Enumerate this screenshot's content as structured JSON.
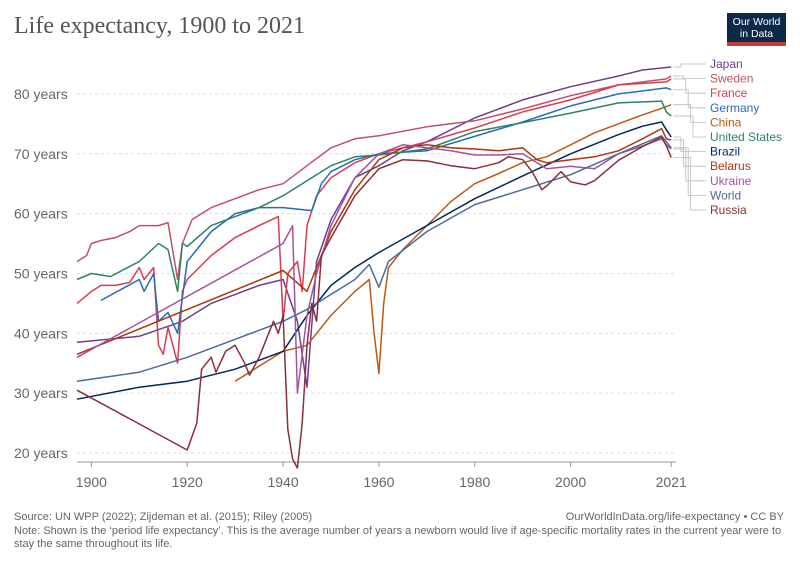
{
  "title": "Life expectancy, 1900 to 2021",
  "logo": {
    "line1": "Our World",
    "line2": "in Data"
  },
  "footer": {
    "source": "Source: UN WPP (2022); Zijdeman et al. (2015); Riley (2005)",
    "credit": "OurWorldInData.org/life-expectancy • CC BY",
    "note": "Note: Shown is the ‘period life expectancy’. This is the average number of years a newborn would live if age-specific mortality rates in the current year were to stay the same throughout its life."
  },
  "chart_data": {
    "type": "line",
    "title": "Life expectancy, 1900 to 2021",
    "xlim": [
      1897,
      2022
    ],
    "ylim": [
      18.5,
      86
    ],
    "x_ticks": [
      1900,
      1920,
      1940,
      1960,
      1980,
      2000,
      2021
    ],
    "x_tick_labels": [
      "1900",
      "1920",
      "1940",
      "1960",
      "1980",
      "2000",
      "2021"
    ],
    "y_ticks": [
      20,
      30,
      40,
      50,
      60,
      70,
      80
    ],
    "y_tick_labels": [
      "20 years",
      "30 years",
      "40 years",
      "50 years",
      "60 years",
      "70 years",
      "80 years"
    ],
    "grid": "horizontal dashed",
    "legend_position": "right",
    "series": [
      {
        "name": "Japan",
        "color": "#6d3e91",
        "points": [
          [
            1897,
            38.5
          ],
          [
            1910,
            39.5
          ],
          [
            1919,
            42
          ],
          [
            1925,
            45
          ],
          [
            1935,
            48
          ],
          [
            1940,
            49
          ],
          [
            1943,
            42
          ],
          [
            1945,
            31
          ],
          [
            1947,
            52
          ],
          [
            1950,
            59
          ],
          [
            1955,
            66
          ],
          [
            1960,
            68
          ],
          [
            1965,
            70.5
          ],
          [
            1970,
            72
          ],
          [
            1980,
            76
          ],
          [
            1990,
            79
          ],
          [
            2000,
            81.2
          ],
          [
            2010,
            83
          ],
          [
            2015,
            84
          ],
          [
            2021,
            84.5
          ]
        ]
      },
      {
        "name": "Sweden",
        "color": "#c15065",
        "points": [
          [
            1897,
            52
          ],
          [
            1899,
            53
          ],
          [
            1900,
            55
          ],
          [
            1902,
            55.5
          ],
          [
            1905,
            56
          ],
          [
            1908,
            57
          ],
          [
            1910,
            58
          ],
          [
            1914,
            58
          ],
          [
            1916,
            58.5
          ],
          [
            1918,
            49
          ],
          [
            1919,
            55
          ],
          [
            1921,
            59
          ],
          [
            1925,
            61
          ],
          [
            1930,
            62.5
          ],
          [
            1935,
            64
          ],
          [
            1940,
            65
          ],
          [
            1945,
            68
          ],
          [
            1950,
            71
          ],
          [
            1955,
            72.5
          ],
          [
            1960,
            73
          ],
          [
            1970,
            74.5
          ],
          [
            1980,
            75.5
          ],
          [
            1990,
            77.5
          ],
          [
            2000,
            79.7
          ],
          [
            2010,
            81.5
          ],
          [
            2020,
            82.5
          ],
          [
            2021,
            83
          ]
        ]
      },
      {
        "name": "France",
        "color": "#d73c50",
        "points": [
          [
            1897,
            45
          ],
          [
            1900,
            47
          ],
          [
            1902,
            48
          ],
          [
            1905,
            48
          ],
          [
            1908,
            48.5
          ],
          [
            1910,
            51
          ],
          [
            1911,
            49
          ],
          [
            1913,
            51
          ],
          [
            1914,
            38
          ],
          [
            1915,
            36.5
          ],
          [
            1916,
            41
          ],
          [
            1918,
            35
          ],
          [
            1919,
            47
          ],
          [
            1920,
            49
          ],
          [
            1925,
            53
          ],
          [
            1930,
            56
          ],
          [
            1935,
            58
          ],
          [
            1939,
            59.5
          ],
          [
            1940,
            42
          ],
          [
            1941,
            50
          ],
          [
            1943,
            52
          ],
          [
            1944,
            47
          ],
          [
            1945,
            58
          ],
          [
            1947,
            63
          ],
          [
            1950,
            66
          ],
          [
            1955,
            68.5
          ],
          [
            1960,
            70
          ],
          [
            1970,
            72
          ],
          [
            1980,
            74.3
          ],
          [
            1990,
            77
          ],
          [
            2000,
            79
          ],
          [
            2010,
            81.5
          ],
          [
            2020,
            82
          ],
          [
            2021,
            82.5
          ]
        ]
      },
      {
        "name": "Germany",
        "color": "#286bbb",
        "points": [
          [
            1902,
            45.5
          ],
          [
            1910,
            49
          ],
          [
            1911,
            47
          ],
          [
            1913,
            50
          ],
          [
            1914,
            42
          ],
          [
            1916,
            43.5
          ],
          [
            1918,
            40
          ],
          [
            1920,
            52
          ],
          [
            1925,
            57
          ],
          [
            1930,
            60
          ],
          [
            1935,
            61
          ],
          [
            1940,
            61
          ],
          [
            1946,
            60.5
          ],
          [
            1948,
            65
          ],
          [
            1950,
            67
          ],
          [
            1955,
            69
          ],
          [
            1960,
            70
          ],
          [
            1970,
            70.5
          ],
          [
            1980,
            72.9
          ],
          [
            1990,
            75.3
          ],
          [
            2000,
            78
          ],
          [
            2010,
            80
          ],
          [
            2020,
            81
          ],
          [
            2021,
            80.7
          ]
        ]
      },
      {
        "name": "China",
        "color": "#be5915",
        "points": [
          [
            1930,
            32
          ],
          [
            1940,
            37
          ],
          [
            1945,
            38
          ],
          [
            1950,
            43
          ],
          [
            1955,
            47
          ],
          [
            1958,
            49
          ],
          [
            1959,
            40
          ],
          [
            1960,
            33.3
          ],
          [
            1961,
            45
          ],
          [
            1962,
            51
          ],
          [
            1965,
            54
          ],
          [
            1970,
            58
          ],
          [
            1975,
            62
          ],
          [
            1980,
            65
          ],
          [
            1985,
            66.7
          ],
          [
            1990,
            68.5
          ],
          [
            1995,
            69.5
          ],
          [
            2000,
            71.5
          ],
          [
            2005,
            73.5
          ],
          [
            2010,
            75
          ],
          [
            2015,
            76.5
          ],
          [
            2019,
            77.6
          ],
          [
            2021,
            78.2
          ]
        ]
      },
      {
        "name": "United States",
        "color": "#2c8465",
        "points": [
          [
            1897,
            49
          ],
          [
            1900,
            50
          ],
          [
            1904,
            49.5
          ],
          [
            1910,
            52
          ],
          [
            1914,
            55
          ],
          [
            1916,
            54
          ],
          [
            1918,
            47
          ],
          [
            1919,
            55
          ],
          [
            1920,
            54.5
          ],
          [
            1925,
            58
          ],
          [
            1930,
            59.5
          ],
          [
            1935,
            61
          ],
          [
            1940,
            63
          ],
          [
            1945,
            65.5
          ],
          [
            1950,
            68
          ],
          [
            1955,
            69.5
          ],
          [
            1960,
            69.8
          ],
          [
            1970,
            70.8
          ],
          [
            1980,
            73.7
          ],
          [
            1990,
            75.2
          ],
          [
            2000,
            76.8
          ],
          [
            2010,
            78.5
          ],
          [
            2019,
            78.8
          ],
          [
            2020,
            77
          ],
          [
            2021,
            76.3
          ]
        ]
      },
      {
        "name": "Brazil",
        "color": "#00295b",
        "points": [
          [
            1897,
            29
          ],
          [
            1910,
            31
          ],
          [
            1920,
            32
          ],
          [
            1930,
            34
          ],
          [
            1940,
            37
          ],
          [
            1945,
            43
          ],
          [
            1950,
            48
          ],
          [
            1955,
            51
          ],
          [
            1960,
            53.5
          ],
          [
            1970,
            58
          ],
          [
            1980,
            62.5
          ],
          [
            1990,
            66.3
          ],
          [
            2000,
            70
          ],
          [
            2010,
            73.2
          ],
          [
            2015,
            74.6
          ],
          [
            2019,
            75.3
          ],
          [
            2020,
            74
          ],
          [
            2021,
            72.8
          ]
        ]
      },
      {
        "name": "Belarus",
        "color": "#b13507",
        "points": [
          [
            1897,
            36.5
          ],
          [
            1940,
            50.5
          ],
          [
            1945,
            47
          ],
          [
            1950,
            57
          ],
          [
            1955,
            64
          ],
          [
            1960,
            69
          ],
          [
            1965,
            71
          ],
          [
            1970,
            71.5
          ],
          [
            1975,
            71
          ],
          [
            1980,
            70.8
          ],
          [
            1985,
            70.5
          ],
          [
            1990,
            71
          ],
          [
            1993,
            69
          ],
          [
            1995,
            68.5
          ],
          [
            2000,
            69
          ],
          [
            2005,
            69.5
          ],
          [
            2010,
            70.5
          ],
          [
            2015,
            72.5
          ],
          [
            2019,
            74.2
          ],
          [
            2020,
            72.5
          ],
          [
            2021,
            72.3
          ]
        ]
      },
      {
        "name": "Ukraine",
        "color": "#a2559c",
        "points": [
          [
            1897,
            36
          ],
          [
            1940,
            55
          ],
          [
            1942,
            58
          ],
          [
            1943,
            30
          ],
          [
            1945,
            43
          ],
          [
            1947,
            50
          ],
          [
            1950,
            58
          ],
          [
            1955,
            66
          ],
          [
            1960,
            70
          ],
          [
            1965,
            71.5
          ],
          [
            1970,
            71
          ],
          [
            1975,
            70.5
          ],
          [
            1980,
            69.8
          ],
          [
            1985,
            69.8
          ],
          [
            1990,
            70
          ],
          [
            1993,
            68.5
          ],
          [
            1995,
            67.5
          ],
          [
            2000,
            67.9
          ],
          [
            2005,
            67.5
          ],
          [
            2010,
            70
          ],
          [
            2015,
            71.3
          ],
          [
            2019,
            72.5
          ],
          [
            2020,
            71.5
          ],
          [
            2021,
            70.8
          ]
        ]
      },
      {
        "name": "World",
        "color": "#4c6a9c",
        "points": [
          [
            1897,
            32
          ],
          [
            1910,
            33.5
          ],
          [
            1920,
            36
          ],
          [
            1930,
            39
          ],
          [
            1940,
            42
          ],
          [
            1945,
            44
          ],
          [
            1950,
            46.5
          ],
          [
            1955,
            49
          ],
          [
            1958,
            51.5
          ],
          [
            1960,
            47.7
          ],
          [
            1962,
            52
          ],
          [
            1970,
            57
          ],
          [
            1980,
            61.5
          ],
          [
            1990,
            64
          ],
          [
            2000,
            66.5
          ],
          [
            2010,
            70
          ],
          [
            2019,
            73
          ],
          [
            2021,
            71
          ]
        ]
      },
      {
        "name": "Russia",
        "color": "#883039",
        "points": [
          [
            1897,
            30.5
          ],
          [
            1920,
            20.5
          ],
          [
            1922,
            25
          ],
          [
            1923,
            34
          ],
          [
            1925,
            36
          ],
          [
            1926,
            33.5
          ],
          [
            1928,
            37
          ],
          [
            1930,
            38
          ],
          [
            1932,
            35
          ],
          [
            1933,
            33
          ],
          [
            1935,
            36
          ],
          [
            1937,
            40
          ],
          [
            1938,
            42
          ],
          [
            1939,
            40
          ],
          [
            1940,
            43
          ],
          [
            1941,
            24
          ],
          [
            1942,
            19
          ],
          [
            1943,
            17.5
          ],
          [
            1944,
            25
          ],
          [
            1945,
            38
          ],
          [
            1946,
            45
          ],
          [
            1947,
            42
          ],
          [
            1948,
            53
          ],
          [
            1950,
            56
          ],
          [
            1955,
            63
          ],
          [
            1960,
            67.5
          ],
          [
            1965,
            69
          ],
          [
            1970,
            68.8
          ],
          [
            1975,
            68
          ],
          [
            1980,
            67.5
          ],
          [
            1985,
            68.5
          ],
          [
            1987,
            69.5
          ],
          [
            1990,
            69
          ],
          [
            1992,
            67
          ],
          [
            1994,
            64
          ],
          [
            1995,
            64.6
          ],
          [
            1998,
            67
          ],
          [
            2000,
            65.3
          ],
          [
            2003,
            64.8
          ],
          [
            2005,
            65.5
          ],
          [
            2010,
            68.9
          ],
          [
            2015,
            71.2
          ],
          [
            2019,
            72.8
          ],
          [
            2020,
            71.3
          ],
          [
            2021,
            69.4
          ]
        ]
      }
    ]
  }
}
